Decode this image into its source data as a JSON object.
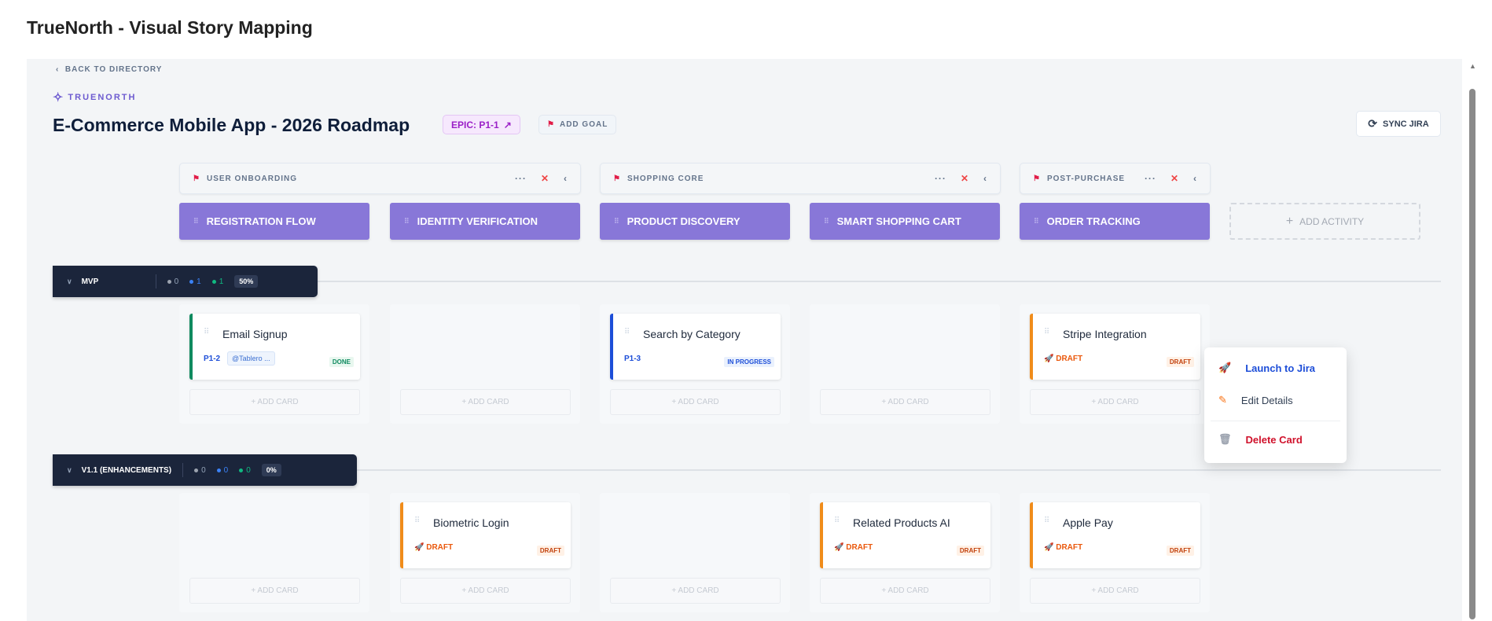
{
  "app_title": "TrueNorth - Visual Story Mapping",
  "header": {
    "back_label": "BACK TO DIRECTORY",
    "brand": "TRUENORTH",
    "title": "E-Commerce Mobile App - 2026 Roadmap",
    "epic_label": "EPIC: P1-1",
    "add_goal_label": "ADD GOAL",
    "sync_label": "SYNC JIRA"
  },
  "goals": [
    {
      "label": "USER ONBOARDING"
    },
    {
      "label": "SHOPPING CORE"
    },
    {
      "label": "POST-PURCHASE"
    }
  ],
  "activities": [
    {
      "label": "REGISTRATION FLOW"
    },
    {
      "label": "IDENTITY VERIFICATION"
    },
    {
      "label": "PRODUCT DISCOVERY"
    },
    {
      "label": "SMART SHOPPING CART"
    },
    {
      "label": "ORDER TRACKING"
    }
  ],
  "add_activity_label": "ADD ACTIVITY",
  "add_card_label": "+ ADD CARD",
  "colors": {
    "accent": "#8877d8",
    "done": "#0f8a5f",
    "in_progress": "#1d4ed8",
    "draft": "#f08c1a",
    "release_bar": "#1b253b"
  },
  "releases": [
    {
      "name": "MVP",
      "stats": {
        "todo": "0",
        "in_progress": "1",
        "done": "1"
      },
      "progress": "50%",
      "cards": [
        {
          "column": 0,
          "title": "Email Signup",
          "key": "P1-2",
          "tag": "@Tablero ...",
          "status": "DONE"
        },
        {
          "column": 2,
          "title": "Search by Category",
          "key": "P1-3",
          "status": "IN PROGRESS"
        },
        {
          "column": 4,
          "title": "Stripe Integration",
          "status": "DRAFT",
          "draft_label": "DRAFT"
        }
      ]
    },
    {
      "name": "V1.1 (ENHANCEMENTS)",
      "stats": {
        "todo": "0",
        "in_progress": "0",
        "done": "0"
      },
      "progress": "0%",
      "cards": [
        {
          "column": 1,
          "title": "Biometric Login",
          "status": "DRAFT",
          "draft_label": "DRAFT"
        },
        {
          "column": 3,
          "title": "Related Products AI",
          "status": "DRAFT",
          "draft_label": "DRAFT"
        },
        {
          "column": 4,
          "title": "Apple Pay",
          "status": "DRAFT",
          "draft_label": "DRAFT"
        }
      ]
    }
  ],
  "context_menu": {
    "items": [
      {
        "label": "Launch to Jira",
        "icon": "rocket-icon"
      },
      {
        "label": "Edit Details",
        "icon": "pencil-icon"
      },
      {
        "label": "Delete Card",
        "icon": "trash-icon"
      }
    ]
  }
}
